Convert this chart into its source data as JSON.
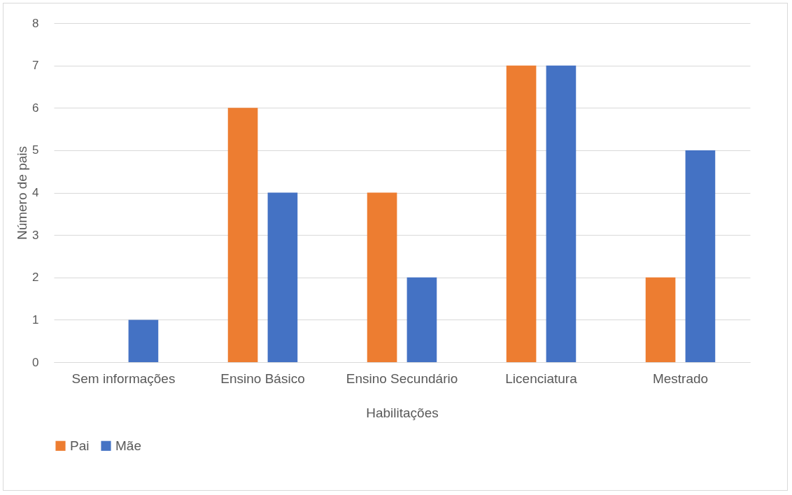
{
  "chart_data": {
    "type": "bar",
    "xlabel": "Habilitações",
    "ylabel": "Número de pais",
    "categories": [
      "Sem informações",
      "Ensino Básico",
      "Ensino Secundário",
      "Licenciatura",
      "Mestrado"
    ],
    "series": [
      {
        "name": "Pai",
        "color": "#ed7d31",
        "values": [
          0,
          6,
          4,
          7,
          2
        ]
      },
      {
        "name": "Mãe",
        "color": "#4472c4",
        "values": [
          1,
          4,
          2,
          7,
          5
        ]
      }
    ],
    "ylim": [
      0,
      8
    ],
    "yticks": [
      0,
      1,
      2,
      3,
      4,
      5,
      6,
      7,
      8
    ],
    "grid": "y",
    "legend": "bottom"
  }
}
